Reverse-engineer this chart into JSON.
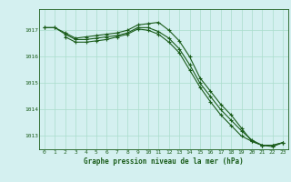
{
  "background_color": "#d4f0f0",
  "grid_color": "#aaddcc",
  "line_color": "#1a5c1a",
  "marker_color": "#1a5c1a",
  "xlabel": "Graphe pression niveau de la mer (hPa)",
  "xlim": [
    -0.5,
    23.5
  ],
  "ylim": [
    1012.5,
    1017.8
  ],
  "yticks": [
    1013,
    1014,
    1015,
    1016,
    1017
  ],
  "xticks": [
    0,
    1,
    2,
    3,
    4,
    5,
    6,
    7,
    8,
    9,
    10,
    11,
    12,
    13,
    14,
    15,
    16,
    17,
    18,
    19,
    20,
    21,
    22,
    23
  ],
  "series": [
    {
      "x": [
        0,
        1,
        2,
        3,
        4,
        5,
        6,
        7,
        8,
        9,
        10,
        11,
        12,
        13,
        14,
        15,
        16,
        17,
        18,
        19,
        20,
        21,
        22,
        23
      ],
      "y": [
        1017.1,
        1017.1,
        1016.9,
        1016.7,
        1016.75,
        1016.8,
        1016.85,
        1016.9,
        1017.0,
        1017.2,
        1017.25,
        1017.3,
        1017.0,
        1016.6,
        1016.0,
        1015.2,
        1014.7,
        1014.2,
        1013.8,
        1013.3,
        1012.8,
        1012.65,
        1012.65,
        1012.75
      ],
      "marker": "+"
    },
    {
      "x": [
        0,
        1,
        2,
        3,
        4,
        5,
        6,
        7,
        8,
        9,
        10,
        11,
        12,
        13,
        14,
        15,
        16,
        17,
        18,
        19,
        20,
        21,
        22,
        23
      ],
      "y": [
        1017.1,
        1017.1,
        1016.85,
        1016.65,
        1016.65,
        1016.7,
        1016.75,
        1016.8,
        1016.9,
        1017.1,
        1017.1,
        1016.95,
        1016.7,
        1016.3,
        1015.7,
        1015.0,
        1014.5,
        1014.0,
        1013.6,
        1013.2,
        1012.85,
        1012.65,
        1012.65,
        1012.75
      ],
      "marker": "+"
    },
    {
      "x": [
        2,
        3,
        4,
        5,
        6,
        7,
        8,
        9,
        10,
        11,
        12,
        13,
        14,
        15,
        16,
        17,
        18,
        19,
        20,
        21,
        22,
        23
      ],
      "y": [
        1016.75,
        1016.55,
        1016.55,
        1016.6,
        1016.65,
        1016.75,
        1016.85,
        1017.05,
        1017.0,
        1016.85,
        1016.55,
        1016.15,
        1015.5,
        1014.85,
        1014.3,
        1013.8,
        1013.4,
        1013.0,
        1012.8,
        1012.65,
        1012.6,
        1012.75
      ],
      "marker": "+"
    }
  ]
}
